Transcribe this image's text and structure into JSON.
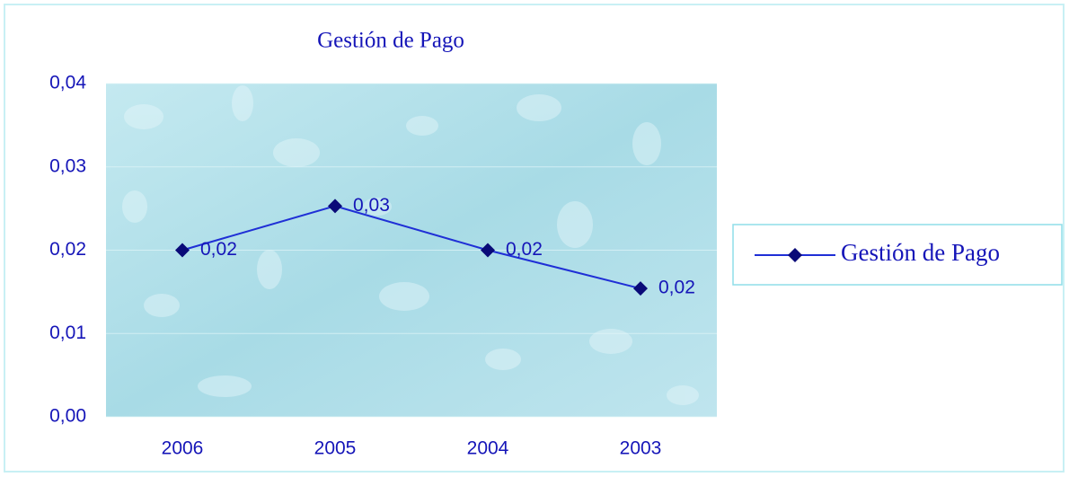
{
  "chart_data": {
    "type": "line",
    "title": "Gestión de Pago",
    "categories": [
      "2006",
      "2005",
      "2004",
      "2003"
    ],
    "series": [
      {
        "name": "Gestión de Pago",
        "color": "#1f2fd6",
        "marker_color": "#0a0a78",
        "values": [
          0.02,
          0.0253,
          0.02,
          0.0154
        ],
        "value_labels": [
          "0,02",
          "0,03",
          "0,02",
          "0,02"
        ]
      }
    ],
    "ylim": [
      0,
      0.04
    ],
    "yticks": [
      {
        "value": 0,
        "label": "0,00"
      },
      {
        "value": 0.01,
        "label": "0,01"
      },
      {
        "value": 0.02,
        "label": "0,02"
      },
      {
        "value": 0.03,
        "label": "0,03"
      },
      {
        "value": 0.04,
        "label": "0,04"
      }
    ],
    "grid": true,
    "legend": "right"
  }
}
